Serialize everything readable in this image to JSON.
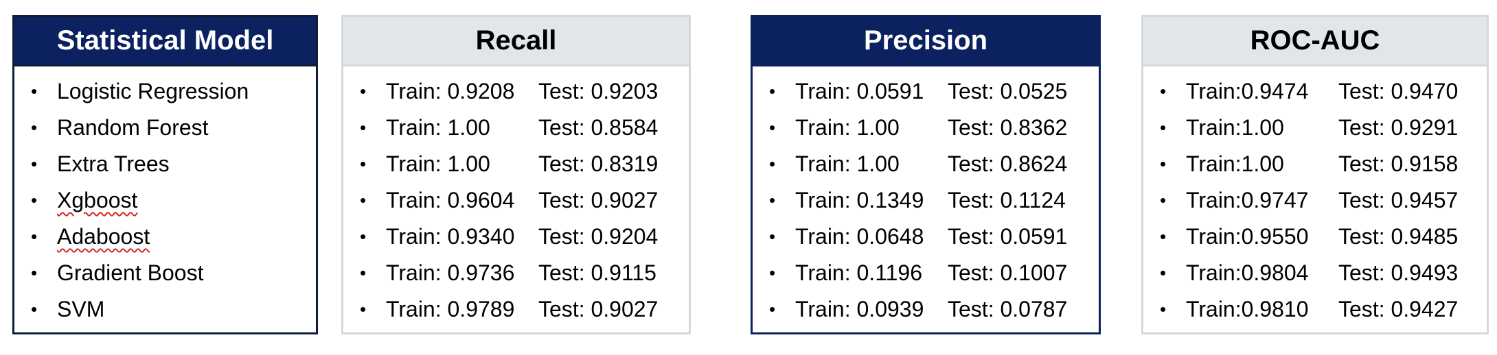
{
  "panels": [
    {
      "title": "Statistical Model",
      "models": [
        {
          "label": "Logistic Regression"
        },
        {
          "label": "Random Forest"
        },
        {
          "label": "Extra Trees"
        },
        {
          "label": "Xgboost",
          "spellcheck": true
        },
        {
          "label": "Adaboost",
          "spellcheck": true
        },
        {
          "label": "Gradient Boost"
        },
        {
          "label": "SVM"
        }
      ]
    },
    {
      "title": "Recall",
      "rows": [
        {
          "train": "Train: 0.9208",
          "test": "Test: 0.9203"
        },
        {
          "train": "Train: 1.00",
          "test": "Test: 0.8584"
        },
        {
          "train": "Train: 1.00",
          "test": "Test: 0.8319"
        },
        {
          "train": "Train: 0.9604",
          "test": "Test: 0.9027"
        },
        {
          "train": "Train: 0.9340",
          "test": "Test: 0.9204"
        },
        {
          "train": "Train: 0.9736",
          "test": "Test: 0.9115"
        },
        {
          "train": "Train: 0.9789",
          "test": "Test: 0.9027"
        }
      ]
    },
    {
      "title": "Precision",
      "rows": [
        {
          "train": "Train: 0.0591",
          "test": "Test: 0.0525"
        },
        {
          "train": "Train: 1.00",
          "test": "Test: 0.8362"
        },
        {
          "train": "Train: 1.00",
          "test": "Test: 0.8624"
        },
        {
          "train": "Train: 0.1349",
          "test": "Test: 0.1124"
        },
        {
          "train": "Train: 0.0648",
          "test": "Test: 0.0591"
        },
        {
          "train": "Train: 0.1196",
          "test": "Test: 0.1007"
        },
        {
          "train": "Train: 0.0939",
          "test": "Test: 0.0787"
        }
      ]
    },
    {
      "title": "ROC-AUC",
      "rows": [
        {
          "train": "Train:0.9474",
          "test": "Test: 0.9470"
        },
        {
          "train": "Train:1.00",
          "test": "Test: 0.9291"
        },
        {
          "train": "Train:1.00",
          "test": "Test: 0.9158"
        },
        {
          "train": "Train:0.9747",
          "test": "Test: 0.9457"
        },
        {
          "train": "Train:0.9550",
          "test": "Test: 0.9485"
        },
        {
          "train": "Train:0.9804",
          "test": "Test: 0.9493"
        },
        {
          "train": "Train:0.9810",
          "test": "Test: 0.9427"
        }
      ]
    }
  ],
  "bullet_glyph": "•",
  "colors": {
    "header_navy": "#0b2160",
    "header_light": "#e1e6e9",
    "border_light": "#d3dadd",
    "spellcheck_red": "#d12a2a"
  }
}
